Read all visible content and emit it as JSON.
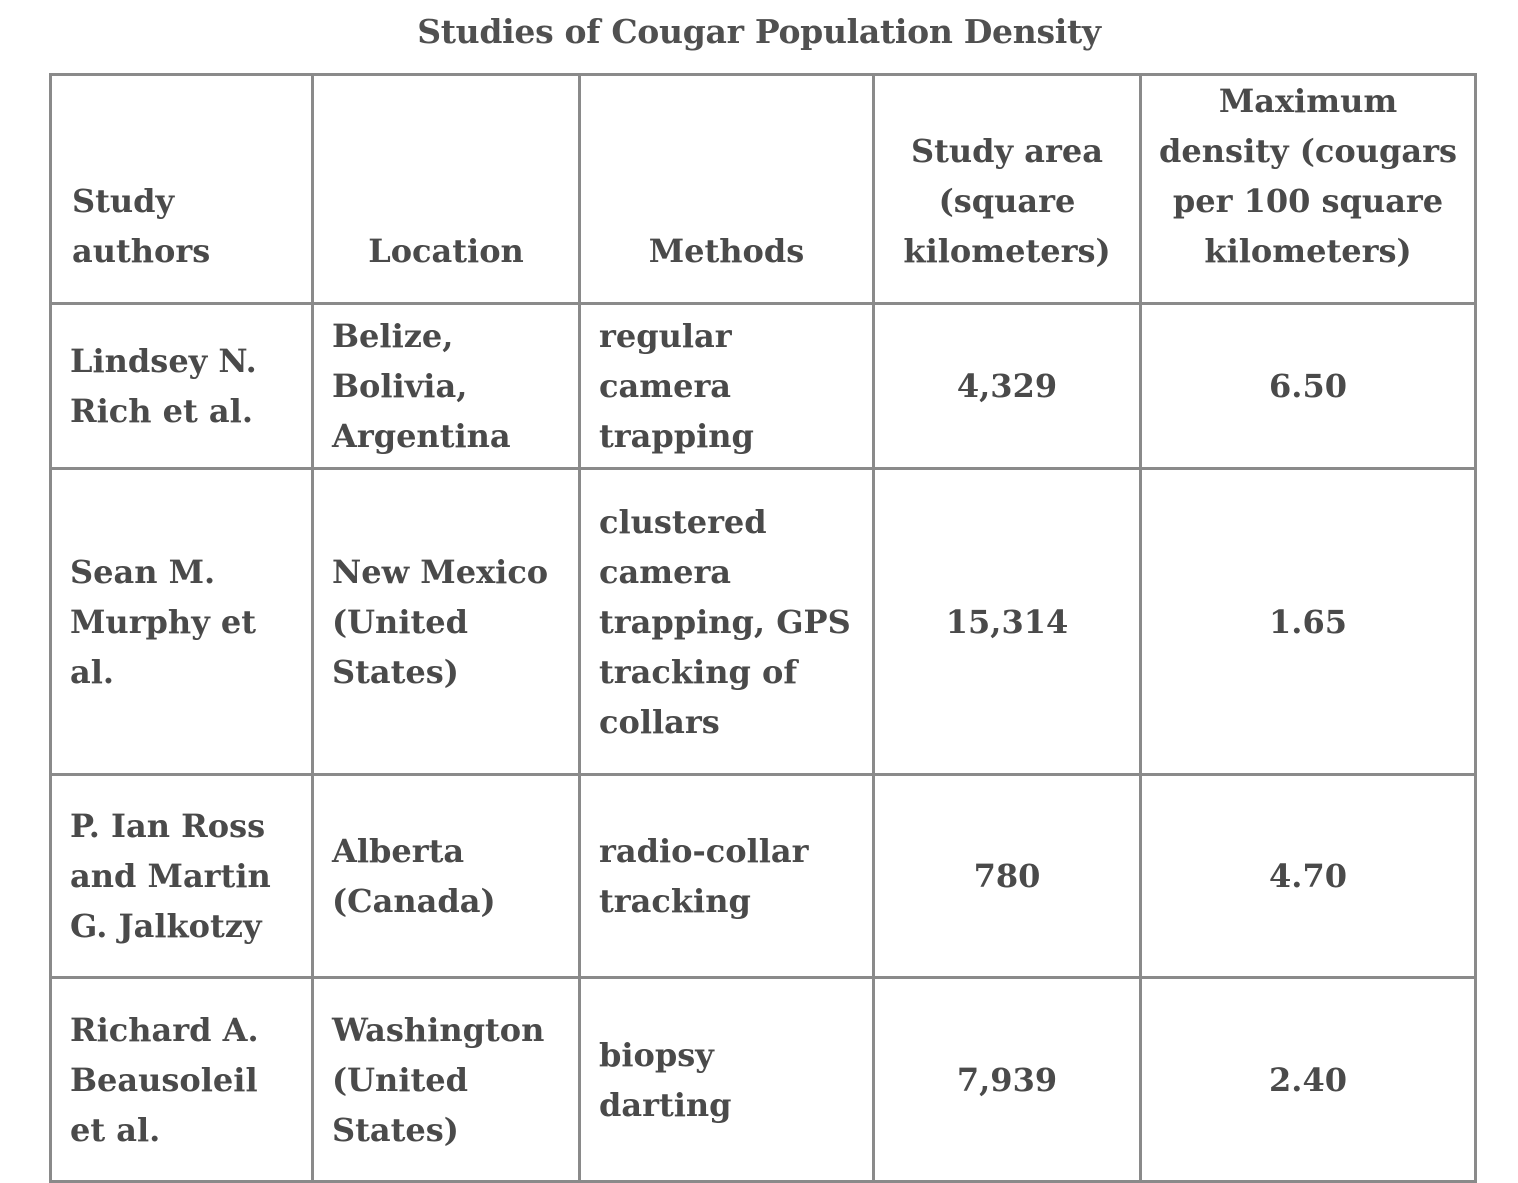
{
  "chart_data": {
    "type": "table",
    "title": "Studies of Cougar Population Density",
    "columns": [
      "Study authors",
      "Location",
      "Methods",
      "Study area (square kilometers)",
      "Maximum density (cougars per 100 square kilometers)"
    ],
    "rows": [
      {
        "authors": "Lindsey N. Rich et al.",
        "location": "Belize, Bolivia, Argentina",
        "methods": "regular camera trapping",
        "study_area": "4,329",
        "max_density": "6.50"
      },
      {
        "authors": "Sean M. Murphy et al.",
        "location": "New Mexico (United States)",
        "methods": "clustered camera trapping, GPS tracking of collars",
        "study_area": "15,314",
        "max_density": "1.65"
      },
      {
        "authors": "P. Ian Ross and Martin G. Jalkotzy",
        "location": "Alberta (Canada)",
        "methods": "radio-collar tracking",
        "study_area": "780",
        "max_density": "4.70"
      },
      {
        "authors": "Richard A. Beausoleil et al.",
        "location": "Washington (United States)",
        "methods": "biopsy darting",
        "study_area": "7,939",
        "max_density": "2.40"
      }
    ]
  }
}
